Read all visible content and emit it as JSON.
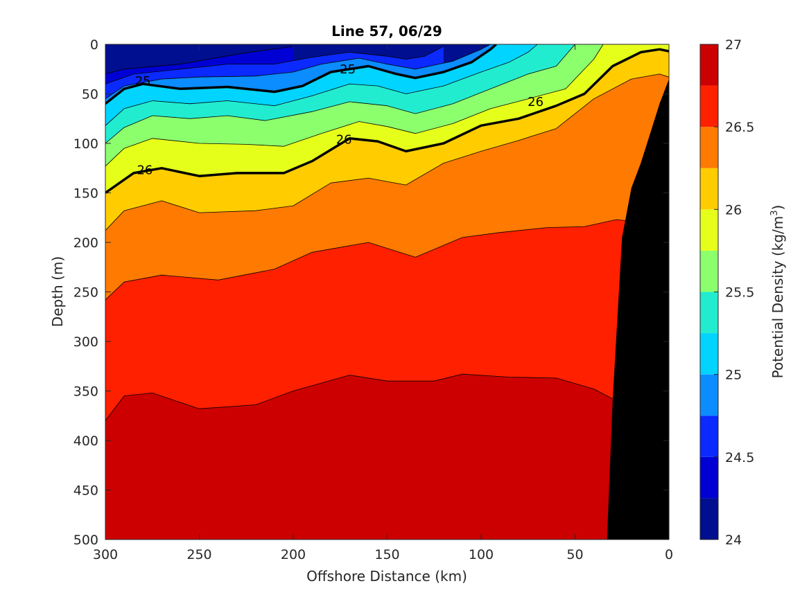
{
  "chart_data": {
    "type": "contour",
    "title": "Line 57, 06/29",
    "xlabel": "Offshore Distance (km)",
    "ylabel": "Depth (m)",
    "colorbar_label": "Potential Density (kg/m³)",
    "colorbar_label_parts": {
      "base": "Potential Density (kg/m",
      "sup": "3",
      "tail": ")"
    },
    "xlim": [
      300,
      0
    ],
    "ylim": [
      0,
      500
    ],
    "y_reversed": true,
    "xticks": [
      300,
      250,
      200,
      150,
      100,
      50,
      0
    ],
    "yticks": [
      0,
      50,
      100,
      150,
      200,
      250,
      300,
      350,
      400,
      450,
      500
    ],
    "colorbar_range": [
      24,
      27
    ],
    "colorbar_ticks": [
      "24",
      "24.5",
      "25",
      "25.5",
      "26",
      "26.5",
      "27"
    ],
    "contour_levels": [
      24.25,
      24.5,
      24.75,
      25,
      25.25,
      25.5,
      25.75,
      26,
      26.25,
      26.5,
      26.75
    ],
    "bands": [
      {
        "range": [
          24.0,
          24.25
        ],
        "color": "#000f8f"
      },
      {
        "range": [
          24.25,
          24.5
        ],
        "color": "#0000d4"
      },
      {
        "range": [
          24.5,
          24.75
        ],
        "color": "#0a2aff"
      },
      {
        "range": [
          24.75,
          25.0
        ],
        "color": "#0b8cff"
      },
      {
        "range": [
          25.0,
          25.25
        ],
        "color": "#00d4ff"
      },
      {
        "range": [
          25.25,
          25.5
        ],
        "color": "#22ecd0"
      },
      {
        "range": [
          25.5,
          25.75
        ],
        "color": "#8cff6c"
      },
      {
        "range": [
          25.75,
          26.0
        ],
        "color": "#e6ff1a"
      },
      {
        "range": [
          26.0,
          26.25
        ],
        "color": "#ffcc00"
      },
      {
        "range": [
          26.25,
          26.5
        ],
        "color": "#ff7a00"
      },
      {
        "range": [
          26.5,
          26.75
        ],
        "color": "#ff2000"
      },
      {
        "range": [
          26.75,
          27.0
        ],
        "color": "#cc0000"
      }
    ],
    "isopycnals": [
      {
        "level": 24.25,
        "points": [
          [
            300,
            30
          ],
          [
            290,
            25
          ],
          [
            260,
            20
          ],
          [
            230,
            10
          ],
          [
            200,
            2
          ]
        ]
      },
      {
        "level": 24.5,
        "points": [
          [
            300,
            40
          ],
          [
            285,
            30
          ],
          [
            260,
            25
          ],
          [
            235,
            20
          ],
          [
            210,
            20
          ],
          [
            190,
            13
          ],
          [
            170,
            8
          ],
          [
            150,
            12
          ],
          [
            140,
            15
          ],
          [
            130,
            12
          ],
          [
            120,
            2
          ]
        ]
      },
      {
        "level": 24.75,
        "points": [
          [
            300,
            55
          ],
          [
            290,
            42
          ],
          [
            270,
            35
          ],
          [
            250,
            33
          ],
          [
            220,
            32
          ],
          [
            200,
            28
          ],
          [
            185,
            20
          ],
          [
            165,
            14
          ],
          [
            150,
            20
          ],
          [
            135,
            25
          ],
          [
            115,
            17
          ],
          [
            100,
            5
          ],
          [
            95,
            0
          ]
        ]
      },
      {
        "level": 25.0,
        "points": [
          [
            300,
            60
          ],
          [
            290,
            45
          ],
          [
            280,
            40
          ],
          [
            260,
            45
          ],
          [
            235,
            43
          ],
          [
            210,
            48
          ],
          [
            195,
            42
          ],
          [
            180,
            28
          ],
          [
            160,
            22
          ],
          [
            145,
            30
          ],
          [
            135,
            34
          ],
          [
            120,
            28
          ],
          [
            105,
            18
          ],
          [
            95,
            5
          ],
          [
            92,
            0
          ]
        ]
      },
      {
        "level": 25.25,
        "points": [
          [
            300,
            82
          ],
          [
            290,
            65
          ],
          [
            275,
            57
          ],
          [
            255,
            60
          ],
          [
            235,
            57
          ],
          [
            210,
            62
          ],
          [
            190,
            52
          ],
          [
            170,
            40
          ],
          [
            155,
            42
          ],
          [
            140,
            50
          ],
          [
            120,
            42
          ],
          [
            100,
            28
          ],
          [
            85,
            18
          ],
          [
            75,
            8
          ],
          [
            70,
            0
          ]
        ]
      },
      {
        "level": 25.5,
        "points": [
          [
            300,
            100
          ],
          [
            290,
            84
          ],
          [
            275,
            72
          ],
          [
            255,
            75
          ],
          [
            235,
            72
          ],
          [
            215,
            77
          ],
          [
            190,
            68
          ],
          [
            170,
            58
          ],
          [
            150,
            62
          ],
          [
            135,
            70
          ],
          [
            115,
            60
          ],
          [
            95,
            45
          ],
          [
            75,
            30
          ],
          [
            60,
            22
          ],
          [
            50,
            0
          ]
        ]
      },
      {
        "level": 25.75,
        "points": [
          [
            300,
            123
          ],
          [
            290,
            105
          ],
          [
            275,
            95
          ],
          [
            250,
            100
          ],
          [
            225,
            101
          ],
          [
            205,
            103
          ],
          [
            185,
            90
          ],
          [
            165,
            78
          ],
          [
            150,
            83
          ],
          [
            135,
            90
          ],
          [
            115,
            80
          ],
          [
            95,
            65
          ],
          [
            75,
            55
          ],
          [
            55,
            45
          ],
          [
            40,
            15
          ],
          [
            35,
            0
          ]
        ]
      },
      {
        "level": 26.0,
        "points": [
          [
            300,
            150
          ],
          [
            285,
            130
          ],
          [
            270,
            125
          ],
          [
            250,
            133
          ],
          [
            230,
            130
          ],
          [
            205,
            130
          ],
          [
            190,
            118
          ],
          [
            170,
            95
          ],
          [
            155,
            98
          ],
          [
            140,
            108
          ],
          [
            120,
            100
          ],
          [
            100,
            82
          ],
          [
            80,
            75
          ],
          [
            60,
            62
          ],
          [
            45,
            50
          ],
          [
            30,
            22
          ],
          [
            15,
            8
          ],
          [
            5,
            5
          ],
          [
            0,
            7
          ]
        ]
      },
      {
        "level": 26.25,
        "points": [
          [
            300,
            188
          ],
          [
            290,
            168
          ],
          [
            270,
            158
          ],
          [
            250,
            170
          ],
          [
            220,
            168
          ],
          [
            200,
            163
          ],
          [
            180,
            140
          ],
          [
            160,
            135
          ],
          [
            140,
            142
          ],
          [
            120,
            120
          ],
          [
            100,
            108
          ],
          [
            80,
            97
          ],
          [
            60,
            85
          ],
          [
            40,
            55
          ],
          [
            20,
            35
          ],
          [
            5,
            30
          ],
          [
            0,
            33
          ]
        ]
      },
      {
        "level": 26.5,
        "points": [
          [
            300,
            258
          ],
          [
            290,
            240
          ],
          [
            270,
            233
          ],
          [
            240,
            238
          ],
          [
            210,
            227
          ],
          [
            190,
            210
          ],
          [
            160,
            200
          ],
          [
            135,
            215
          ],
          [
            110,
            195
          ],
          [
            90,
            190
          ],
          [
            65,
            185
          ],
          [
            45,
            184
          ],
          [
            28,
            177
          ],
          [
            23,
            178
          ]
        ]
      },
      {
        "level": 26.75,
        "points": [
          [
            300,
            380
          ],
          [
            290,
            355
          ],
          [
            275,
            352
          ],
          [
            250,
            368
          ],
          [
            220,
            364
          ],
          [
            200,
            350
          ],
          [
            170,
            334
          ],
          [
            150,
            340
          ],
          [
            125,
            340
          ],
          [
            110,
            333
          ],
          [
            85,
            336
          ],
          [
            60,
            337
          ],
          [
            40,
            348
          ],
          [
            30,
            358
          ]
        ]
      }
    ],
    "contour_labels": [
      {
        "text": "25",
        "x": 280,
        "y": 37
      },
      {
        "text": "25",
        "x": 171,
        "y": 25
      },
      {
        "text": "26",
        "x": 279,
        "y": 127
      },
      {
        "text": "26",
        "x": 173,
        "y": 96
      },
      {
        "text": "26",
        "x": 71,
        "y": 58
      }
    ],
    "land_mask": {
      "color": "#000000",
      "points": [
        [
          33,
          500
        ],
        [
          30,
          360
        ],
        [
          25,
          195
        ],
        [
          20,
          145
        ],
        [
          15,
          120
        ],
        [
          10,
          90
        ],
        [
          5,
          60
        ],
        [
          0,
          35
        ],
        [
          0,
          500
        ]
      ]
    }
  }
}
